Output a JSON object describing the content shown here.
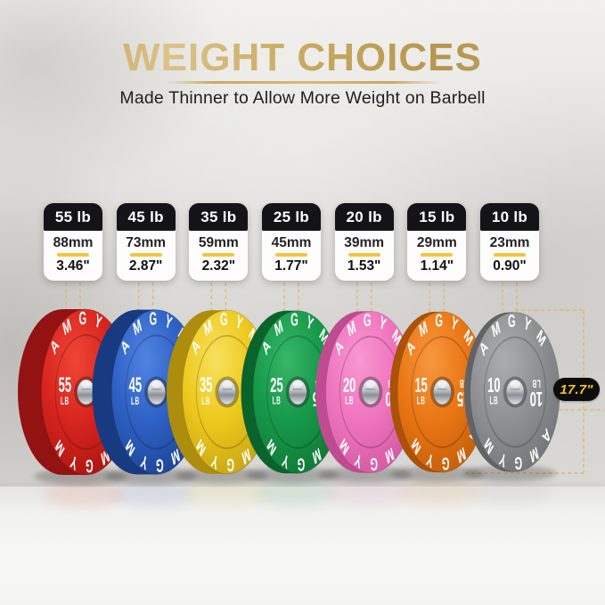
{
  "header": {
    "title": "WEIGHT CHOICES",
    "subtitle": "Made Thinner to Allow More Weight on Barbell"
  },
  "brand": "AMGYM",
  "measurement": {
    "diameter_label": "17.7\""
  },
  "plates": [
    {
      "weight_label": "55 lb",
      "thickness_mm": "88mm",
      "thickness_in": "3.46\"",
      "weight_number": "55",
      "weight_unit": "LB",
      "color_name": "red",
      "colors": {
        "base": "#d8241f",
        "light": "#ef4634",
        "dark": "#a51510",
        "rim": "#921311"
      }
    },
    {
      "weight_label": "45 lb",
      "thickness_mm": "73mm",
      "thickness_in": "2.87\"",
      "weight_number": "45",
      "weight_unit": "LB",
      "color_name": "blue",
      "colors": {
        "base": "#2e61c4",
        "light": "#5184e2",
        "dark": "#1c4191",
        "rim": "#183a80"
      }
    },
    {
      "weight_label": "35 lb",
      "thickness_mm": "59mm",
      "thickness_in": "2.32\"",
      "weight_number": "35",
      "weight_unit": "LB",
      "color_name": "yellow",
      "colors": {
        "base": "#eec91d",
        "light": "#f8e15e",
        "dark": "#c3a112",
        "rim": "#ac8d0e"
      }
    },
    {
      "weight_label": "25 lb",
      "thickness_mm": "45mm",
      "thickness_in": "1.77\"",
      "weight_number": "25",
      "weight_unit": "LB",
      "color_name": "green",
      "colors": {
        "base": "#17994a",
        "light": "#37b768",
        "dark": "#0e7434",
        "rim": "#0b632c"
      }
    },
    {
      "weight_label": "20 lb",
      "thickness_mm": "39mm",
      "thickness_in": "1.53\"",
      "weight_number": "20",
      "weight_unit": "LB",
      "color_name": "pink",
      "colors": {
        "base": "#ef75be",
        "light": "#f898d2",
        "dark": "#d155a0",
        "rim": "#bf4b90"
      }
    },
    {
      "weight_label": "15 lb",
      "thickness_mm": "29mm",
      "thickness_in": "1.14\"",
      "weight_number": "15",
      "weight_unit": "LB",
      "color_name": "orange",
      "colors": {
        "base": "#ea7614",
        "light": "#f8983f",
        "dark": "#c05c09",
        "rim": "#a95208"
      }
    },
    {
      "weight_label": "10 lb",
      "thickness_mm": "23mm",
      "thickness_in": "0.90\"",
      "weight_number": "10",
      "weight_unit": "LB",
      "color_name": "gray",
      "colors": {
        "base": "#8f9195",
        "light": "#abadb1",
        "dark": "#707276",
        "rim": "#616367"
      }
    }
  ],
  "style": {
    "accent_gold": "#c9a85c",
    "divider_yellow": "#f2c53d",
    "dashed_line_color": "#d9b95c",
    "card_header_bg": "#141418",
    "pill_bg": "#0c0c0c",
    "pill_text_color": "#f3c41d"
  }
}
